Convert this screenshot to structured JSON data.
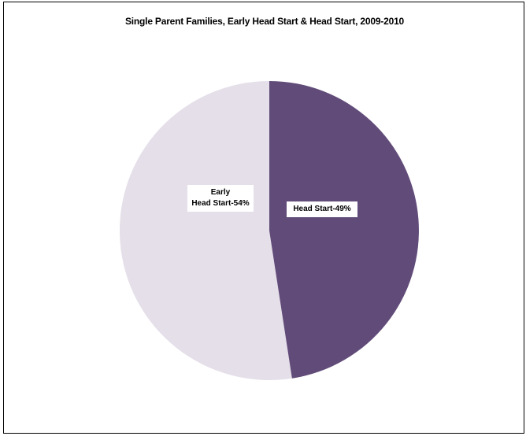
{
  "chart_data": {
    "type": "pie",
    "title": "Single Parent Families, Early Head Start & Head Start, 2009-2010",
    "slices": [
      {
        "label_lines": [
          "Early",
          "Head Start-54%"
        ],
        "value": 54,
        "color": "#e5dfe9"
      },
      {
        "label_lines": [
          "Head Start-49%"
        ],
        "value": 49,
        "color": "#614b79"
      }
    ],
    "start_angle_deg": 0,
    "direction": "counter-clockwise",
    "legend": "none"
  }
}
